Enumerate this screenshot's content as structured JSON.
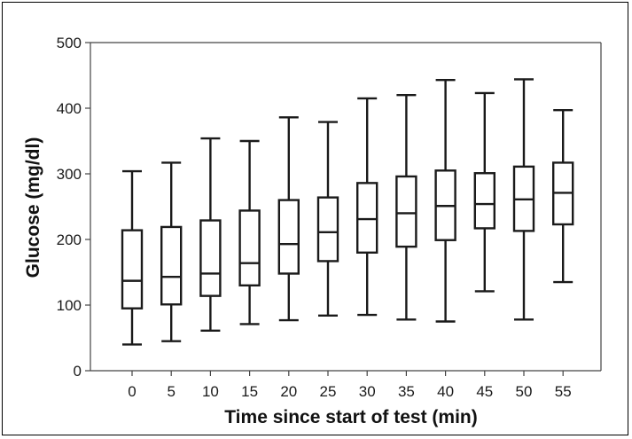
{
  "chart_data": {
    "type": "boxplot",
    "xlabel": "Time since start of test (min)",
    "ylabel": "Glucose (mg/dl)",
    "ylim": [
      0,
      500
    ],
    "yticks": [
      0,
      100,
      200,
      300,
      400,
      500
    ],
    "categories": [
      "0",
      "5",
      "10",
      "15",
      "20",
      "25",
      "30",
      "35",
      "40",
      "45",
      "50",
      "55"
    ],
    "boxes": [
      {
        "min": 40,
        "q1": 95,
        "median": 137,
        "q3": 214,
        "max": 304
      },
      {
        "min": 45,
        "q1": 101,
        "median": 143,
        "q3": 219,
        "max": 317
      },
      {
        "min": 61,
        "q1": 114,
        "median": 148,
        "q3": 229,
        "max": 354
      },
      {
        "min": 71,
        "q1": 130,
        "median": 164,
        "q3": 244,
        "max": 350
      },
      {
        "min": 77,
        "q1": 148,
        "median": 193,
        "q3": 260,
        "max": 386
      },
      {
        "min": 84,
        "q1": 167,
        "median": 211,
        "q3": 264,
        "max": 379
      },
      {
        "min": 85,
        "q1": 180,
        "median": 231,
        "q3": 286,
        "max": 415
      },
      {
        "min": 78,
        "q1": 189,
        "median": 240,
        "q3": 296,
        "max": 420
      },
      {
        "min": 75,
        "q1": 199,
        "median": 251,
        "q3": 305,
        "max": 443
      },
      {
        "min": 121,
        "q1": 217,
        "median": 254,
        "q3": 301,
        "max": 423
      },
      {
        "min": 78,
        "q1": 213,
        "median": 261,
        "q3": 311,
        "max": 444
      },
      {
        "min": 135,
        "q1": 223,
        "median": 271,
        "q3": 317,
        "max": 397
      }
    ],
    "grid": false,
    "legend": "none"
  }
}
